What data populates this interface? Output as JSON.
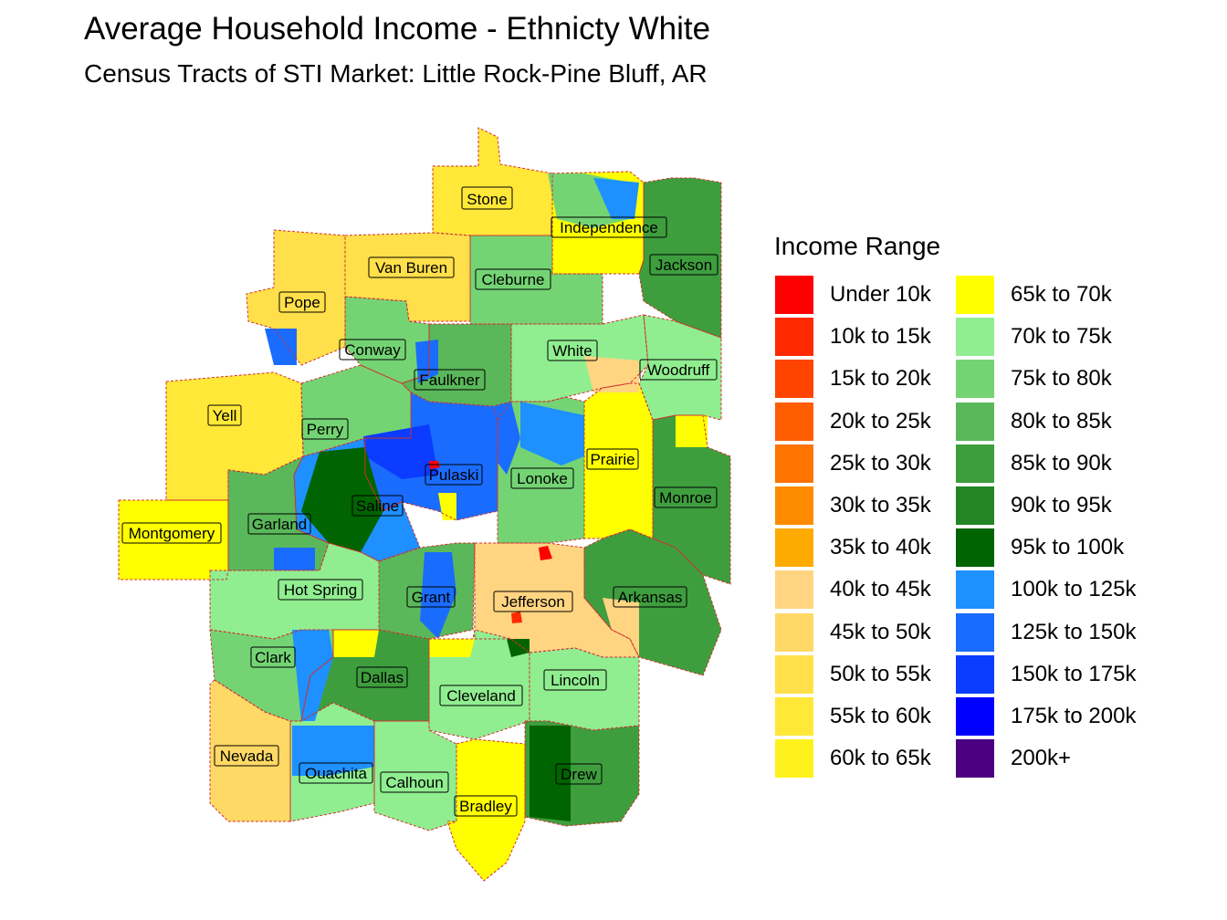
{
  "title": "Average Household Income - Ethnicty White",
  "subtitle": "Census Tracts of STI Market: Little Rock-Pine Bluff, AR",
  "legend": {
    "title": "Income Range",
    "items": [
      {
        "label": "Under 10k",
        "color": "#ff0000"
      },
      {
        "label": "10k to 15k",
        "color": "#ff2a00"
      },
      {
        "label": "15k to 20k",
        "color": "#ff4400"
      },
      {
        "label": "20k to 25k",
        "color": "#ff5e00"
      },
      {
        "label": "25k to 30k",
        "color": "#ff7300"
      },
      {
        "label": "30k to 35k",
        "color": "#ff8c00"
      },
      {
        "label": "35k to 40k",
        "color": "#ffaa00"
      },
      {
        "label": "40k to 45k",
        "color": "#ffd582"
      },
      {
        "label": "45k to 50k",
        "color": "#ffd966"
      },
      {
        "label": "50k to 55k",
        "color": "#ffe04a"
      },
      {
        "label": "55k to 60k",
        "color": "#ffe838"
      },
      {
        "label": "60k to 65k",
        "color": "#fff21c"
      },
      {
        "label": "65k to 70k",
        "color": "#ffff00"
      },
      {
        "label": "70k to 75k",
        "color": "#90ee90"
      },
      {
        "label": "75k to 80k",
        "color": "#74d474"
      },
      {
        "label": "80k to 85k",
        "color": "#5ab85a"
      },
      {
        "label": "85k to 90k",
        "color": "#3e9e3e"
      },
      {
        "label": "90k to 95k",
        "color": "#238523"
      },
      {
        "label": "95k to 100k",
        "color": "#006400"
      },
      {
        "label": "100k to 125k",
        "color": "#1e90ff"
      },
      {
        "label": "125k to 150k",
        "color": "#1a6cff"
      },
      {
        "label": "150k to 175k",
        "color": "#0c3cff"
      },
      {
        "label": "175k to 200k",
        "color": "#0000ff"
      },
      {
        "label": "200k+",
        "color": "#4b0082"
      }
    ]
  },
  "counties": [
    {
      "name": "Stone",
      "fill": "#ffe838"
    },
    {
      "name": "Independence",
      "fill": "#ffff00"
    },
    {
      "name": "Van Buren",
      "fill": "#ffe04a"
    },
    {
      "name": "Cleburne",
      "fill": "#74d474"
    },
    {
      "name": "Jackson",
      "fill": "#3e9e3e"
    },
    {
      "name": "Pope",
      "fill": "#ffe04a"
    },
    {
      "name": "Conway",
      "fill": "#74d474"
    },
    {
      "name": "White",
      "fill": "#90ee90"
    },
    {
      "name": "Faulkner",
      "fill": "#5ab85a"
    },
    {
      "name": "Woodruff",
      "fill": "#90ee90"
    },
    {
      "name": "Yell",
      "fill": "#ffe838"
    },
    {
      "name": "Perry",
      "fill": "#74d474"
    },
    {
      "name": "Pulaski",
      "fill": "#1a6cff"
    },
    {
      "name": "Prairie",
      "fill": "#ffff00"
    },
    {
      "name": "Lonoke",
      "fill": "#74d474"
    },
    {
      "name": "Monroe",
      "fill": "#3e9e3e"
    },
    {
      "name": "Saline",
      "fill": "#1e90ff"
    },
    {
      "name": "Garland",
      "fill": "#5ab85a"
    },
    {
      "name": "Montgomery",
      "fill": "#ffff00"
    },
    {
      "name": "Hot Spring",
      "fill": "#90ee90"
    },
    {
      "name": "Grant",
      "fill": "#5ab85a"
    },
    {
      "name": "Jefferson",
      "fill": "#ffd582"
    },
    {
      "name": "Arkansas",
      "fill": "#3e9e3e"
    },
    {
      "name": "Clark",
      "fill": "#74d474"
    },
    {
      "name": "Dallas",
      "fill": "#3e9e3e"
    },
    {
      "name": "Cleveland",
      "fill": "#90ee90"
    },
    {
      "name": "Lincoln",
      "fill": "#90ee90"
    },
    {
      "name": "Nevada",
      "fill": "#ffd966"
    },
    {
      "name": "Ouachita",
      "fill": "#90ee90"
    },
    {
      "name": "Calhoun",
      "fill": "#90ee90"
    },
    {
      "name": "Bradley",
      "fill": "#ffff00"
    },
    {
      "name": "Drew",
      "fill": "#3e9e3e"
    }
  ]
}
